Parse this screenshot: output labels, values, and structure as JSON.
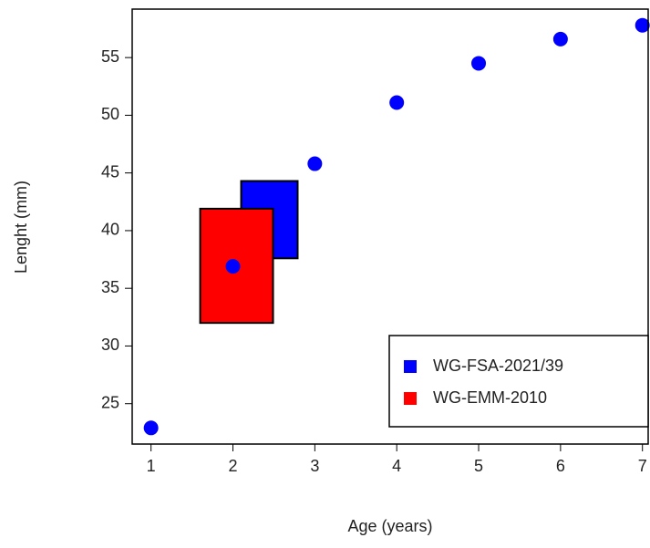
{
  "chart_data": {
    "type": "scatter",
    "x_label": "Age (years)",
    "y_label": "Lenght (mm)",
    "x": [
      1,
      2,
      3,
      4,
      5,
      6,
      7
    ],
    "values": [
      22.9,
      36.9,
      45.8,
      51.1,
      54.5,
      56.6,
      57.8
    ],
    "color": "#0000ff",
    "boxes": [
      {
        "name": "WG-FSA-2021/39",
        "color": "#0000ff",
        "x": [
          2.1,
          2.79
        ],
        "y": [
          37.6,
          44.3
        ]
      },
      {
        "name": "WG-EMM-2010",
        "color": "#ff0000",
        "x": [
          1.6,
          2.49
        ],
        "y": [
          32.0,
          41.9
        ]
      }
    ],
    "xlim": [
      0.77,
      7.07
    ],
    "ylim": [
      21.5,
      59.2
    ],
    "xticks": [
      1,
      2,
      3,
      4,
      5,
      6,
      7
    ],
    "yticks": [
      25,
      30,
      35,
      40,
      45,
      50,
      55
    ],
    "legend": "bottom-right"
  }
}
